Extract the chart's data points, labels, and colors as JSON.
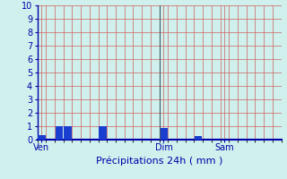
{
  "xlabel": "Précipitations 24h ( mm )",
  "background_color": "#cff0ec",
  "bar_color": "#1a3ecf",
  "ylim": [
    0,
    10
  ],
  "yticks": [
    0,
    1,
    2,
    3,
    4,
    5,
    6,
    7,
    8,
    9,
    10
  ],
  "num_bars": 28,
  "bar_values": [
    0.35,
    0,
    1.0,
    1.0,
    0,
    0,
    0,
    1.0,
    0,
    0,
    0,
    0,
    0,
    0,
    0.9,
    0,
    0,
    0,
    0.3,
    0,
    0,
    0,
    0,
    0,
    0,
    0,
    0,
    0
  ],
  "day_labels": [
    "Ven",
    "Dim",
    "Sam"
  ],
  "day_positions": [
    0.5,
    14.5,
    21.5
  ],
  "vline_positions": [
    14
  ],
  "grid_color": "#d06060",
  "axis_color": "#0000aa",
  "tick_color": "#0000aa",
  "label_color": "#0000aa",
  "figsize": [
    3.2,
    2.0
  ],
  "dpi": 100
}
